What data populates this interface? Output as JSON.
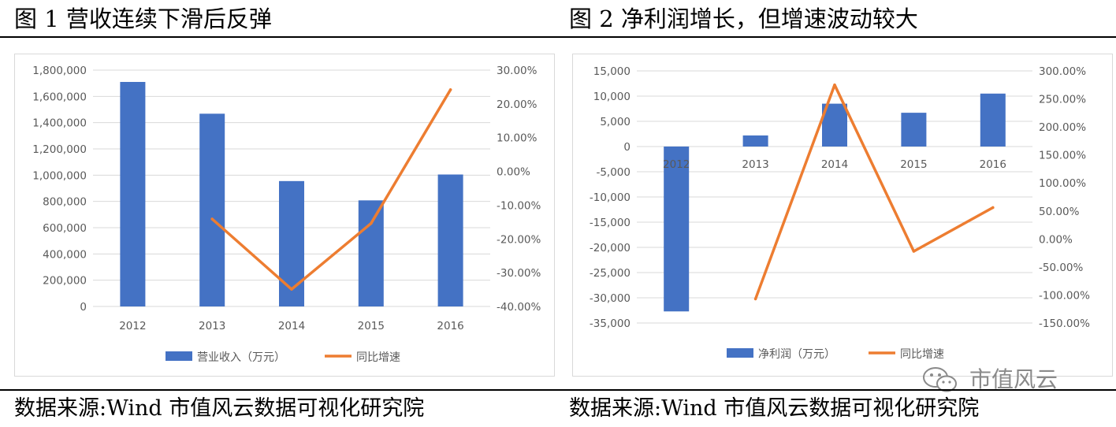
{
  "figure1": {
    "title": "图 1  营收连续下滑后反弹"
  },
  "figure2": {
    "title": "图 2  净利润增长，但增速波动较大"
  },
  "sources": [
    "数据来源:Wind   市值风云数据可视化研究院",
    "数据来源:Wind   市值风云数据可视化研究院"
  ],
  "watermark": {
    "text": "市值风云",
    "icon": "wechat-logo-icon"
  },
  "colors": {
    "bar": "#4472C4",
    "line": "#ED7D31",
    "grid": "#D9D9D9",
    "axis_text": "#595959"
  },
  "chart_data": [
    {
      "type": "bar",
      "categories": [
        "2012",
        "2013",
        "2014",
        "2015",
        "2016"
      ],
      "series": [
        {
          "name": "营业收入（万元）",
          "type": "bar",
          "axis": "left",
          "values": [
            1710000,
            1468000,
            955000,
            808000,
            1005000
          ]
        },
        {
          "name": "同比增速",
          "type": "line",
          "axis": "right",
          "values": [
            null,
            -0.141,
            -0.349,
            -0.154,
            0.242
          ]
        }
      ],
      "ylim": [
        0,
        1800000
      ],
      "yticks": [
        0,
        200000,
        400000,
        600000,
        800000,
        1000000,
        1200000,
        1400000,
        1600000,
        1800000
      ],
      "ytick_labels": [
        "0",
        "200,000",
        "400,000",
        "600,000",
        "800,000",
        "1,000,000",
        "1,200,000",
        "1,400,000",
        "1,600,000",
        "1,800,000"
      ],
      "y2lim": [
        -0.4,
        0.3
      ],
      "y2ticks": [
        -0.4,
        -0.3,
        -0.2,
        -0.1,
        0,
        0.1,
        0.2,
        0.3
      ],
      "y2tick_labels": [
        "-40.00%",
        "-30.00%",
        "-20.00%",
        "-10.00%",
        "0.00%",
        "10.00%",
        "20.00%",
        "30.00%"
      ],
      "grid": true,
      "legend": "bottom-center"
    },
    {
      "type": "bar",
      "categories": [
        "2012",
        "2013",
        "2014",
        "2015",
        "2016"
      ],
      "series": [
        {
          "name": "净利润（万元）",
          "type": "bar",
          "axis": "left",
          "values": [
            -32700,
            2200,
            8500,
            6700,
            10500
          ]
        },
        {
          "name": "同比增速",
          "type": "line",
          "axis": "right",
          "values": [
            null,
            -1.07,
            2.75,
            -0.22,
            0.56
          ]
        }
      ],
      "ylim": [
        -35000,
        15000
      ],
      "yticks": [
        -35000,
        -30000,
        -25000,
        -20000,
        -15000,
        -10000,
        -5000,
        0,
        5000,
        10000,
        15000
      ],
      "ytick_labels": [
        "-35,000",
        "-30,000",
        "-25,000",
        "-20,000",
        "-15,000",
        "-10,000",
        "-5,000",
        "0",
        "5,000",
        "10,000",
        "15,000"
      ],
      "y2lim": [
        -1.5,
        3.0
      ],
      "y2ticks": [
        -1.5,
        -1.0,
        -0.5,
        0,
        0.5,
        1.0,
        1.5,
        2.0,
        2.5,
        3.0
      ],
      "y2tick_labels": [
        "-150.00%",
        "-100.00%",
        "-50.00%",
        "0.00%",
        "50.00%",
        "100.00%",
        "150.00%",
        "200.00%",
        "250.00%",
        "300.00%"
      ],
      "grid": true,
      "legend": "bottom-center"
    }
  ]
}
